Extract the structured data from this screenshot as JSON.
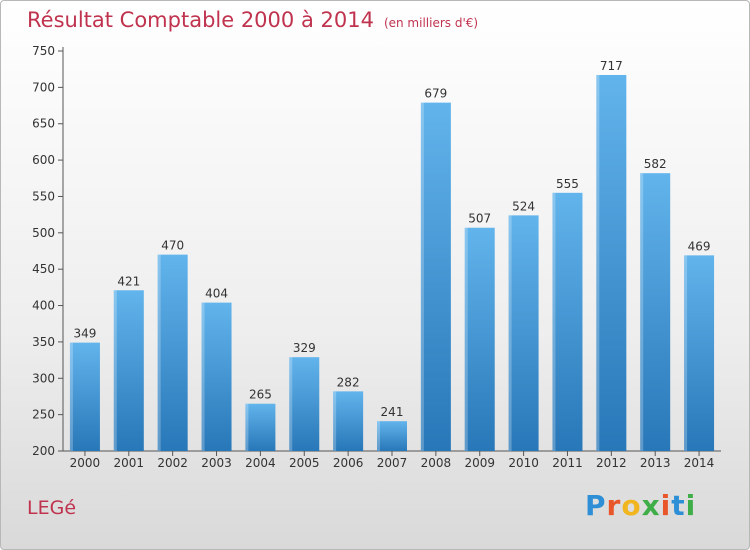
{
  "title": "Résultat Comptable 2000 à 2014",
  "subtitle": "(en milliers d'€)",
  "commune": "LEGé",
  "logo": {
    "letters": [
      "P",
      "r",
      "o",
      "x",
      "i",
      "t",
      "i"
    ],
    "colors": [
      "#2e8fd6",
      "#e8562a",
      "#f0b51f",
      "#3fae49",
      "#e8562a",
      "#2e8fd6",
      "#3fae49"
    ]
  },
  "colors": {
    "bar_top": "#62b4ec",
    "bar_bottom": "#2877b8",
    "title": "#c0334f"
  },
  "chart_data": {
    "type": "bar",
    "title": "Résultat Comptable 2000 à 2014",
    "categories": [
      "2000",
      "2001",
      "2002",
      "2003",
      "2004",
      "2005",
      "2006",
      "2007",
      "2008",
      "2009",
      "2010",
      "2011",
      "2012",
      "2013",
      "2014"
    ],
    "values": [
      349,
      421,
      470,
      404,
      265,
      329,
      282,
      241,
      679,
      507,
      524,
      555,
      717,
      582,
      469
    ],
    "ylim": [
      200,
      750
    ],
    "yticks": [
      200,
      250,
      300,
      350,
      400,
      450,
      500,
      550,
      600,
      650,
      700,
      750
    ],
    "grid": false,
    "data_labels": true
  }
}
